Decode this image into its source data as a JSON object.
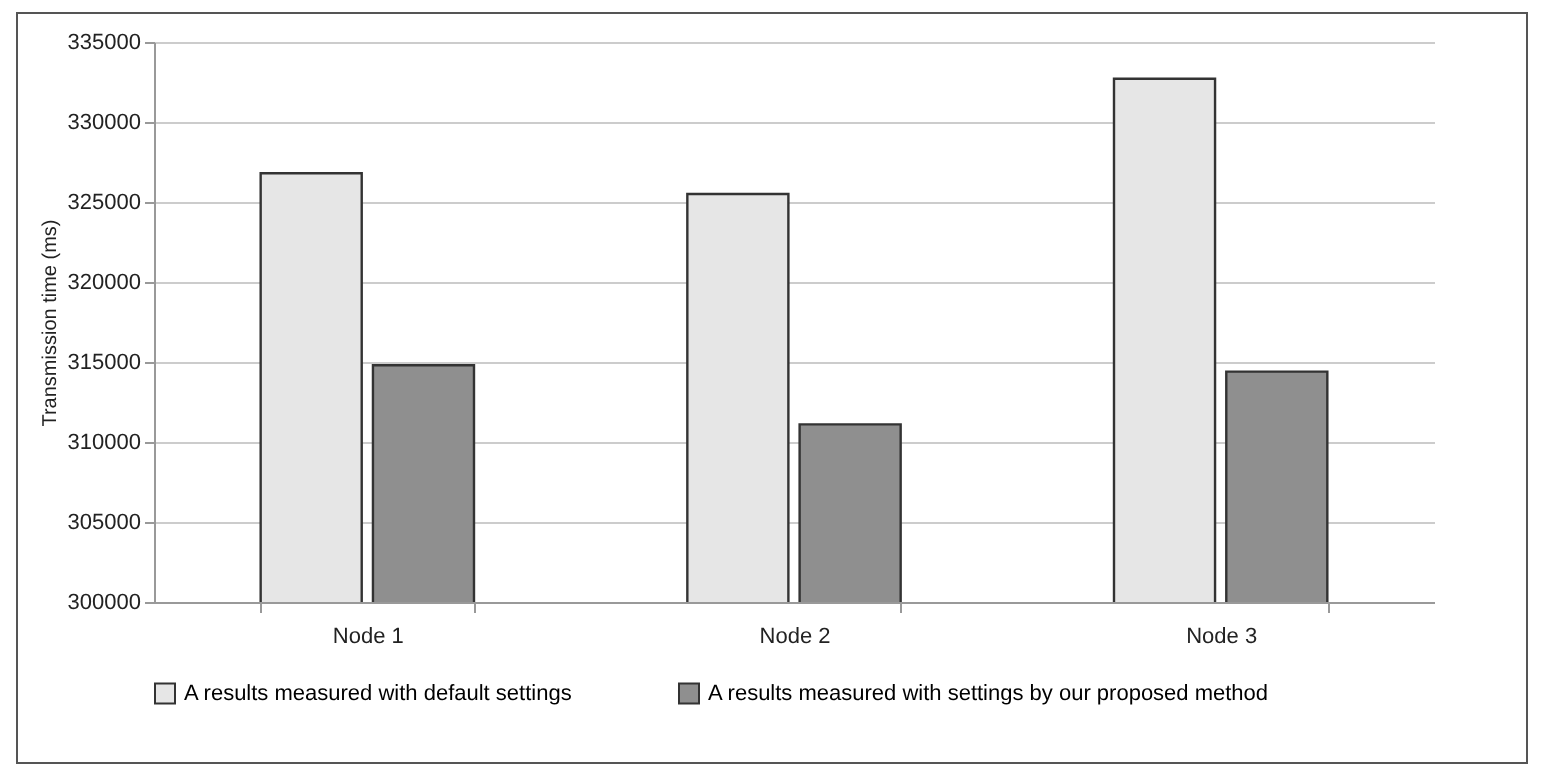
{
  "chart_data": {
    "type": "bar",
    "ylabel": "Transmission time (ms)",
    "categories": [
      "Node 1",
      "Node 2",
      "Node 3"
    ],
    "series": [
      {
        "name": "A results measured with default settings",
        "color": "#e6e6e6",
        "values": [
          326800,
          325500,
          332700
        ]
      },
      {
        "name": "A results measured with settings by our proposed method",
        "color": "#8f8f8f",
        "values": [
          314800,
          311100,
          314400
        ]
      }
    ],
    "ylim": [
      300000,
      335000
    ],
    "yticks": [
      300000,
      305000,
      310000,
      315000,
      320000,
      325000,
      330000,
      335000
    ],
    "grid": "y",
    "legend": "bottom"
  }
}
